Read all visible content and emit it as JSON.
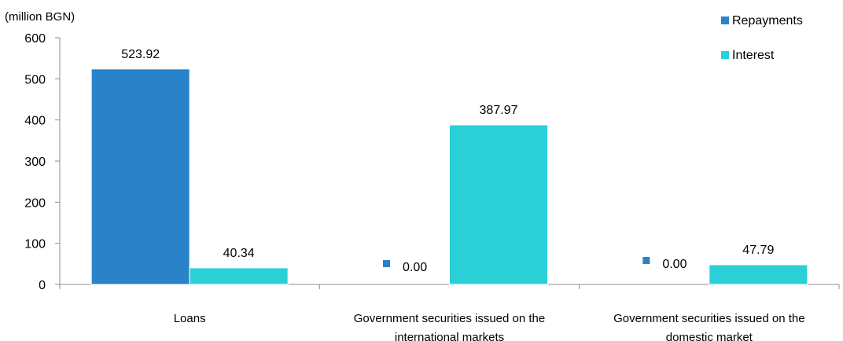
{
  "chart_data": {
    "type": "bar",
    "unit_label": "(million BGN)",
    "categories": [
      [
        "Loans"
      ],
      [
        "Government securities issued on the",
        "international markets"
      ],
      [
        "Government securities issued on the",
        "domestic market"
      ]
    ],
    "series": [
      {
        "name": "Repayments",
        "color": "#2a82c9",
        "values": [
          523.92,
          0.0,
          0.0
        ],
        "labels": [
          "523.92",
          "0.00",
          "0.00"
        ]
      },
      {
        "name": "Interest",
        "color": "#2bcfd8",
        "values": [
          40.34,
          387.97,
          47.79
        ],
        "labels": [
          "40.34",
          "387.97",
          "47.79"
        ]
      }
    ],
    "ylim": [
      0,
      600
    ],
    "yticks": [
      "0",
      "100",
      "200",
      "300",
      "400",
      "500",
      "600"
    ],
    "legend_position": "top-right",
    "grid": false
  }
}
